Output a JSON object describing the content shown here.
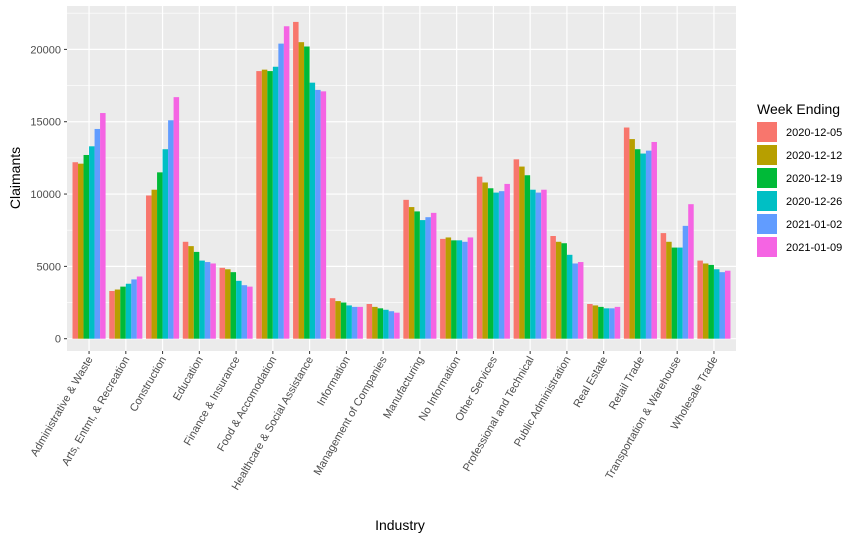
{
  "chart_data": {
    "type": "bar",
    "title": "",
    "xlabel": "Industry",
    "ylabel": "Claimants",
    "ylim": [
      -850,
      23000
    ],
    "yticks": [
      0,
      5000,
      10000,
      15000,
      20000
    ],
    "ytick_labels": [
      "0",
      "5000",
      "10000",
      "15000",
      "20000"
    ],
    "grid": true,
    "legend": {
      "title": "Week Ending",
      "position": "right"
    },
    "categories": [
      "Administrative & Waste",
      "Arts, Entmt, & Recreation",
      "Construction",
      "Education",
      "Finance & Insurance",
      "Food & Accomodation",
      "Healthcare & Social Assistance",
      "Information",
      "Management of Companies",
      "Manufacturing",
      "No Information",
      "Other Services",
      "Professional and Technical",
      "Public Administration",
      "Real Estate",
      "Retail Trade",
      "Transportation & Warehouse",
      "Wholesale Trade"
    ],
    "series": [
      {
        "name": "2020-12-05",
        "color": "#F8766D",
        "values": [
          12200,
          3300,
          9900,
          6700,
          4900,
          18500,
          21900,
          2800,
          2400,
          9600,
          6900,
          11200,
          12400,
          7100,
          2400,
          14600,
          7300,
          5400
        ]
      },
      {
        "name": "2020-12-12",
        "color": "#B79F00",
        "values": [
          12100,
          3400,
          10300,
          6400,
          4800,
          18600,
          20500,
          2600,
          2200,
          9100,
          7000,
          10800,
          11900,
          6700,
          2300,
          13800,
          6700,
          5200
        ]
      },
      {
        "name": "2020-12-19",
        "color": "#00BA38",
        "values": [
          12700,
          3600,
          11500,
          6000,
          4600,
          18500,
          20200,
          2500,
          2100,
          8800,
          6800,
          10400,
          11300,
          6600,
          2200,
          13100,
          6300,
          5100
        ]
      },
      {
        "name": "2020-12-26",
        "color": "#00BFC4",
        "values": [
          13300,
          3800,
          13100,
          5400,
          4000,
          18800,
          17700,
          2300,
          2000,
          8200,
          6800,
          10100,
          10300,
          5800,
          2100,
          12800,
          6300,
          4800
        ]
      },
      {
        "name": "2021-01-02",
        "color": "#619CFF",
        "values": [
          14500,
          4100,
          15100,
          5300,
          3700,
          20400,
          17200,
          2200,
          1900,
          8400,
          6700,
          10200,
          10100,
          5200,
          2100,
          13000,
          7800,
          4600
        ]
      },
      {
        "name": "2021-01-09",
        "color": "#F564E3",
        "values": [
          15600,
          4300,
          16700,
          5200,
          3600,
          21600,
          17100,
          2200,
          1800,
          8700,
          7000,
          10700,
          10300,
          5300,
          2200,
          13600,
          9300,
          4700
        ]
      }
    ]
  }
}
